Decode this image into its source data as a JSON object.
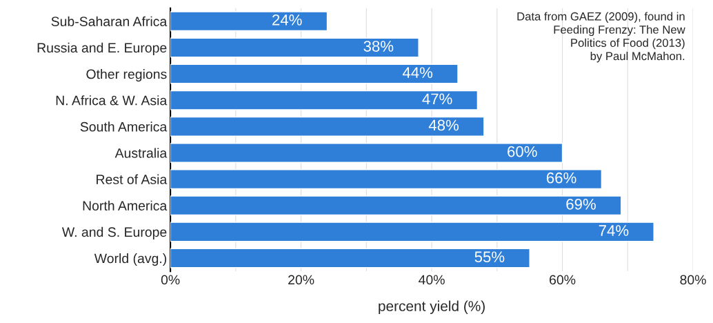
{
  "chart_data": {
    "type": "bar",
    "orientation": "horizontal",
    "categories": [
      "Sub-Saharan Africa",
      "Russia and E. Europe",
      "Other regions",
      "N. Africa & W. Asia",
      "South America",
      "Australia",
      "Rest of Asia",
      "North America",
      "W. and S. Europe",
      "World (avg.)"
    ],
    "values": [
      24,
      38,
      44,
      47,
      48,
      60,
      66,
      69,
      74,
      55
    ],
    "value_labels": [
      "24%",
      "38%",
      "44%",
      "47%",
      "48%",
      "60%",
      "66%",
      "69%",
      "74%",
      "55%"
    ],
    "color": "#2f7fd8",
    "xlabel": "percent yield (%)",
    "xlim": [
      0,
      80
    ],
    "xticks": [
      {
        "value": 0,
        "label": "0%"
      },
      {
        "value": 10,
        "label": null
      },
      {
        "value": 20,
        "label": "20%"
      },
      {
        "value": 30,
        "label": null
      },
      {
        "value": 40,
        "label": "40%"
      },
      {
        "value": 50,
        "label": null
      },
      {
        "value": 60,
        "label": "60%"
      },
      {
        "value": 70,
        "label": null
      },
      {
        "value": 80,
        "label": "80%"
      }
    ],
    "grid": "x",
    "annotations": [
      "Data from GAEZ (2009), found in\nFeeding Frenzy: The New\nPolitics of Food (2013)\nby Paul McMahon."
    ]
  }
}
